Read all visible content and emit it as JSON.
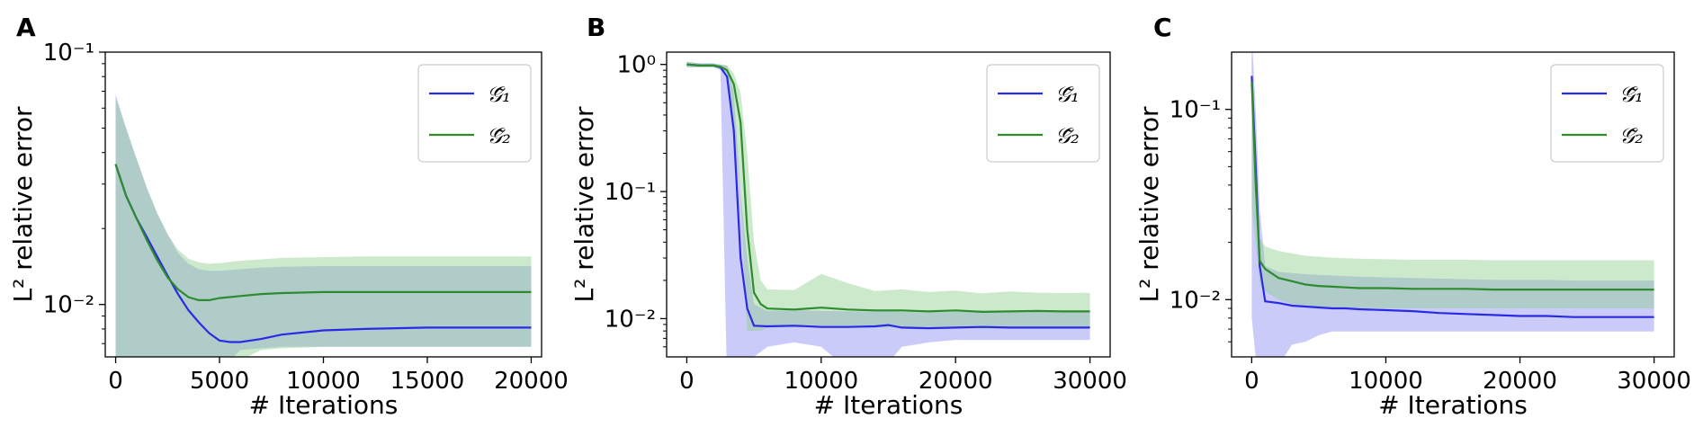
{
  "panels": [
    {
      "letter": "A"
    },
    {
      "letter": "B"
    },
    {
      "letter": "C"
    }
  ],
  "colors": {
    "series1": "#2a2ae6",
    "series2": "#2e8b2e",
    "band1": "#8c8cf2",
    "band2": "#8fcf8f"
  },
  "chart_data": [
    {
      "type": "line",
      "xlabel": "# Iterations",
      "ylabel": "L² relative error",
      "yscale": "log",
      "xlim": [
        -500,
        20500
      ],
      "ylim": [
        0.0062,
        0.1
      ],
      "xticks": [
        0,
        5000,
        10000,
        15000,
        20000
      ],
      "xtick_labels": [
        "0",
        "5000",
        "10000",
        "15000",
        "20000"
      ],
      "yticks": [
        0.01,
        0.1
      ],
      "ytick_labels": [
        "10⁻²",
        "10⁻¹"
      ],
      "grid": false,
      "legend": "top-right",
      "series": [
        {
          "name": "𝒢̃₁",
          "x": [
            0,
            500,
            1000,
            1500,
            2000,
            2500,
            3000,
            3500,
            4000,
            4500,
            5000,
            5500,
            6000,
            7000,
            8000,
            10000,
            12000,
            15000,
            17500,
            20000
          ],
          "y": [
            0.036,
            0.027,
            0.022,
            0.0185,
            0.0155,
            0.013,
            0.011,
            0.0095,
            0.0085,
            0.0077,
            0.0072,
            0.0071,
            0.0071,
            0.0073,
            0.0076,
            0.0079,
            0.008,
            0.0081,
            0.0081,
            0.0081
          ],
          "band_low": [
            0.006,
            0.006,
            0.006,
            0.006,
            0.006,
            0.006,
            0.006,
            0.006,
            0.006,
            0.006,
            0.006,
            0.006,
            0.0066,
            0.0067,
            0.0068,
            0.0068,
            0.0068,
            0.0068,
            0.0068,
            0.0068
          ],
          "band_high": [
            0.068,
            0.05,
            0.038,
            0.029,
            0.023,
            0.019,
            0.016,
            0.0145,
            0.0138,
            0.0136,
            0.0136,
            0.0137,
            0.0138,
            0.014,
            0.0141,
            0.0142,
            0.0142,
            0.0142,
            0.0142,
            0.0142
          ]
        },
        {
          "name": "𝒢̃₂",
          "x": [
            0,
            500,
            1000,
            1500,
            2000,
            2500,
            3000,
            3500,
            4000,
            4500,
            5000,
            6000,
            7000,
            8000,
            10000,
            12000,
            15000,
            17500,
            20000
          ],
          "y": [
            0.036,
            0.027,
            0.022,
            0.018,
            0.015,
            0.0128,
            0.0115,
            0.0107,
            0.0104,
            0.0104,
            0.0106,
            0.0108,
            0.011,
            0.0111,
            0.0112,
            0.0112,
            0.0112,
            0.0112,
            0.0112
          ],
          "band_low": [
            0.006,
            0.006,
            0.006,
            0.006,
            0.006,
            0.006,
            0.006,
            0.006,
            0.006,
            0.006,
            0.006,
            0.006,
            0.0066,
            0.0067,
            0.0068,
            0.0068,
            0.0068,
            0.0068,
            0.0068
          ],
          "band_high": [
            0.066,
            0.05,
            0.038,
            0.029,
            0.023,
            0.019,
            0.0165,
            0.0152,
            0.0147,
            0.0145,
            0.0146,
            0.0149,
            0.0151,
            0.0153,
            0.0154,
            0.0155,
            0.0155,
            0.0155,
            0.0155
          ]
        }
      ]
    },
    {
      "type": "line",
      "xlabel": "# Iterations",
      "ylabel": "L² relative error",
      "yscale": "log",
      "xlim": [
        -1500,
        31500
      ],
      "ylim": [
        0.005,
        1.25
      ],
      "xticks": [
        0,
        10000,
        20000,
        30000
      ],
      "xtick_labels": [
        "0",
        "10000",
        "20000",
        "30000"
      ],
      "yticks": [
        0.01,
        0.1,
        1
      ],
      "ytick_labels": [
        "10⁻²",
        "10⁻¹",
        "10⁰"
      ],
      "grid": false,
      "legend": "top-right",
      "series": [
        {
          "name": "𝒢̃₁",
          "x": [
            0,
            1000,
            2000,
            2500,
            3000,
            3500,
            4000,
            4500,
            5000,
            6000,
            8000,
            10000,
            12000,
            14000,
            15000,
            16000,
            18000,
            20000,
            22000,
            24000,
            26000,
            28000,
            30000
          ],
          "y": [
            1.0,
            0.98,
            0.98,
            0.95,
            0.8,
            0.3,
            0.03,
            0.012,
            0.0088,
            0.0087,
            0.0088,
            0.0086,
            0.0086,
            0.0087,
            0.0089,
            0.0085,
            0.0084,
            0.0085,
            0.0086,
            0.0085,
            0.0085,
            0.0085,
            0.0085
          ],
          "band_low": [
            0.95,
            0.95,
            0.95,
            0.9,
            0.003,
            0.003,
            0.003,
            0.003,
            0.005,
            0.006,
            0.0065,
            0.006,
            0.004,
            0.003,
            0.0045,
            0.006,
            0.0065,
            0.0068,
            0.0068,
            0.0068,
            0.0068,
            0.0068,
            0.0068
          ],
          "band_high": [
            1.05,
            1.02,
            1.02,
            1.0,
            0.98,
            0.6,
            0.1,
            0.03,
            0.013,
            0.0115,
            0.0117,
            0.0115,
            0.0114,
            0.0114,
            0.0115,
            0.0113,
            0.0112,
            0.0113,
            0.0114,
            0.0113,
            0.0113,
            0.0113,
            0.0113
          ]
        },
        {
          "name": "𝒢̃₂",
          "x": [
            0,
            1000,
            2000,
            2500,
            3000,
            3500,
            4000,
            4500,
            5000,
            5500,
            6000,
            8000,
            10000,
            12000,
            14000,
            16000,
            18000,
            20000,
            22000,
            24000,
            26000,
            28000,
            30000
          ],
          "y": [
            1.0,
            0.98,
            0.98,
            0.96,
            0.9,
            0.7,
            0.35,
            0.05,
            0.016,
            0.013,
            0.012,
            0.0118,
            0.0122,
            0.0118,
            0.0116,
            0.0116,
            0.0114,
            0.0116,
            0.0113,
            0.0114,
            0.0115,
            0.0114,
            0.0114
          ],
          "band_low": [
            0.95,
            0.95,
            0.95,
            0.92,
            0.85,
            0.3,
            0.1,
            0.008,
            0.008,
            0.008,
            0.0085,
            0.0085,
            0.0087,
            0.0085,
            0.0085,
            0.0085,
            0.0084,
            0.0085,
            0.0083,
            0.0084,
            0.0085,
            0.0084,
            0.0084
          ],
          "band_high": [
            1.05,
            1.02,
            1.02,
            1.0,
            0.98,
            0.85,
            0.6,
            0.2,
            0.04,
            0.02,
            0.017,
            0.0168,
            0.0225,
            0.019,
            0.0165,
            0.017,
            0.0162,
            0.0166,
            0.0158,
            0.0164,
            0.016,
            0.0159,
            0.016
          ]
        }
      ]
    },
    {
      "type": "line",
      "xlabel": "# Iterations",
      "ylabel": "L² relative error",
      "yscale": "log",
      "xlim": [
        -1500,
        31500
      ],
      "ylim": [
        0.005,
        0.2
      ],
      "xticks": [
        0,
        10000,
        20000,
        30000
      ],
      "xtick_labels": [
        "0",
        "10000",
        "20000",
        "30000"
      ],
      "yticks": [
        0.01,
        0.1
      ],
      "ytick_labels": [
        "10⁻²",
        "10⁻¹"
      ],
      "grid": false,
      "legend": "top-right",
      "series": [
        {
          "name": "𝒢̃₁",
          "x": [
            0,
            300,
            600,
            1000,
            2000,
            3000,
            4000,
            5000,
            6000,
            7000,
            8000,
            10000,
            12000,
            14000,
            16000,
            18000,
            20000,
            22000,
            24000,
            26000,
            28000,
            30000
          ],
          "y": [
            0.15,
            0.05,
            0.015,
            0.0098,
            0.0096,
            0.0093,
            0.0092,
            0.0091,
            0.009,
            0.009,
            0.0089,
            0.0088,
            0.0087,
            0.0085,
            0.0084,
            0.0083,
            0.0082,
            0.0082,
            0.0081,
            0.0081,
            0.0081,
            0.0081
          ],
          "band_low": [
            0.008,
            0.005,
            0.004,
            0.0035,
            0.0045,
            0.0058,
            0.006,
            0.0065,
            0.0068,
            0.0068,
            0.0068,
            0.0068,
            0.0068,
            0.0068,
            0.0068,
            0.0068,
            0.0068,
            0.0068,
            0.0068,
            0.0068,
            0.0068,
            0.0068
          ],
          "band_high": [
            0.25,
            0.1,
            0.03,
            0.015,
            0.014,
            0.0138,
            0.0136,
            0.0135,
            0.0134,
            0.0133,
            0.0132,
            0.0131,
            0.013,
            0.0129,
            0.0128,
            0.0127,
            0.0127,
            0.0127,
            0.0126,
            0.0126,
            0.0126,
            0.0126
          ]
        },
        {
          "name": "𝒢̃₂",
          "x": [
            0,
            300,
            600,
            1000,
            2000,
            3000,
            4000,
            5000,
            6000,
            7000,
            8000,
            10000,
            12000,
            14000,
            16000,
            18000,
            20000,
            22000,
            24000,
            26000,
            28000,
            30000
          ],
          "y": [
            0.14,
            0.04,
            0.016,
            0.0145,
            0.013,
            0.0125,
            0.012,
            0.0118,
            0.0117,
            0.0116,
            0.0115,
            0.0115,
            0.0114,
            0.0114,
            0.0114,
            0.0113,
            0.0113,
            0.0113,
            0.0113,
            0.0113,
            0.0113,
            0.0113
          ],
          "band_low": [
            0.03,
            0.02,
            0.012,
            0.011,
            0.01,
            0.0095,
            0.0092,
            0.0091,
            0.009,
            0.009,
            0.009,
            0.009,
            0.009,
            0.009,
            0.009,
            0.009,
            0.009,
            0.009,
            0.009,
            0.009,
            0.009,
            0.009
          ],
          "band_high": [
            0.2,
            0.06,
            0.021,
            0.019,
            0.018,
            0.0175,
            0.017,
            0.0168,
            0.0166,
            0.0165,
            0.0164,
            0.0163,
            0.0162,
            0.0162,
            0.0162,
            0.0161,
            0.0161,
            0.0161,
            0.0161,
            0.0161,
            0.0161,
            0.0161
          ]
        }
      ]
    }
  ]
}
